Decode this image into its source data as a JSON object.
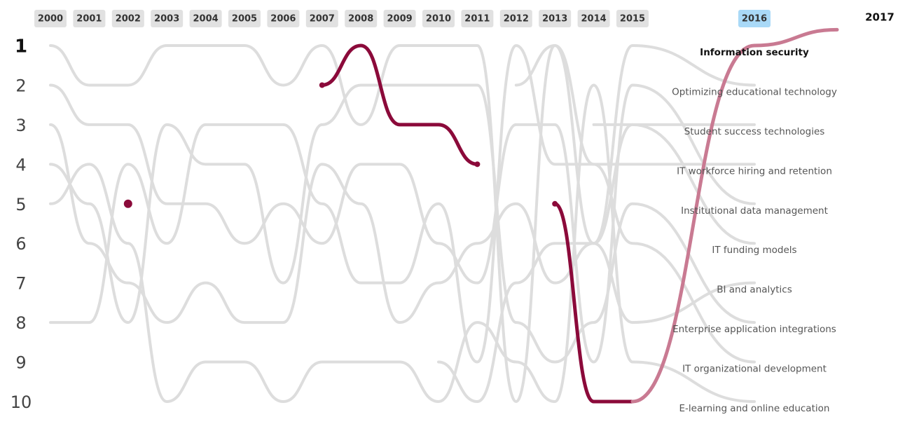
{
  "chart_data": {
    "type": "bump",
    "categories": [
      "2000",
      "2001",
      "2002",
      "2003",
      "2004",
      "2005",
      "2006",
      "2007",
      "2008",
      "2009",
      "2010",
      "2011",
      "2012",
      "2013",
      "2014",
      "2015",
      "2016",
      "2017"
    ],
    "highlight_year": "2016",
    "highlight_series": 0,
    "later_color": "#c97a92",
    "ylim": [
      1,
      10
    ],
    "y_reversed": true,
    "yticks": [
      1,
      2,
      3,
      4,
      5,
      6,
      7,
      8,
      9,
      10
    ],
    "series": [
      {
        "name": "Information security",
        "color": "#8b0a3a",
        "values": [
          null,
          null,
          5,
          null,
          null,
          null,
          null,
          2,
          1,
          3,
          3,
          4,
          null,
          5,
          10,
          10,
          1,
          0.6
        ]
      },
      {
        "name": "Optimizing educational technology",
        "color": "#dddddd",
        "values": [
          null,
          null,
          null,
          null,
          null,
          null,
          null,
          null,
          null,
          null,
          null,
          null,
          2,
          1,
          6,
          1,
          2,
          null
        ]
      },
      {
        "name": "Student success technologies",
        "color": "#dddddd",
        "values": [
          null,
          null,
          null,
          null,
          null,
          null,
          null,
          null,
          null,
          null,
          null,
          null,
          null,
          null,
          3,
          3,
          3,
          null
        ]
      },
      {
        "name": "IT workforce hiring and retention",
        "color": "#dddddd",
        "values": [
          1,
          2,
          2,
          1,
          1,
          1,
          2,
          1,
          3,
          1,
          1,
          1,
          10,
          1,
          4,
          4,
          4,
          null
        ]
      },
      {
        "name": "Institutional data management",
        "color": "#dddddd",
        "values": [
          2,
          3,
          3,
          5,
          5,
          6,
          5,
          6,
          4,
          4,
          6,
          7,
          3,
          3,
          9,
          2,
          5,
          null
        ]
      },
      {
        "name": "IT funding models",
        "color": "#dddddd",
        "values": [
          3,
          6,
          7,
          8,
          7,
          8,
          8,
          4,
          5,
          8,
          7,
          6,
          5,
          7,
          6,
          3,
          6,
          null
        ]
      },
      {
        "name": "BI and analytics",
        "color": "#dddddd",
        "values": [
          null,
          null,
          null,
          null,
          null,
          null,
          null,
          null,
          null,
          null,
          9,
          10,
          7,
          6,
          6,
          8,
          7,
          null
        ]
      },
      {
        "name": "Enterprise application integrations",
        "color": "#dddddd",
        "values": [
          4,
          5,
          8,
          3,
          4,
          4,
          7,
          3,
          2,
          2,
          2,
          2,
          8,
          9,
          8,
          5,
          8,
          null
        ]
      },
      {
        "name": "IT organizational development",
        "color": "#dddddd",
        "values": [
          8,
          8,
          4,
          6,
          3,
          3,
          3,
          5,
          7,
          7,
          5,
          9,
          1,
          4,
          4,
          6,
          9,
          null
        ]
      },
      {
        "name": "E-learning and online education",
        "color": "#dddddd",
        "values": [
          5,
          4,
          6,
          10,
          9,
          9,
          10,
          9,
          9,
          9,
          10,
          8,
          9,
          10,
          2,
          9,
          10,
          null
        ]
      }
    ]
  }
}
